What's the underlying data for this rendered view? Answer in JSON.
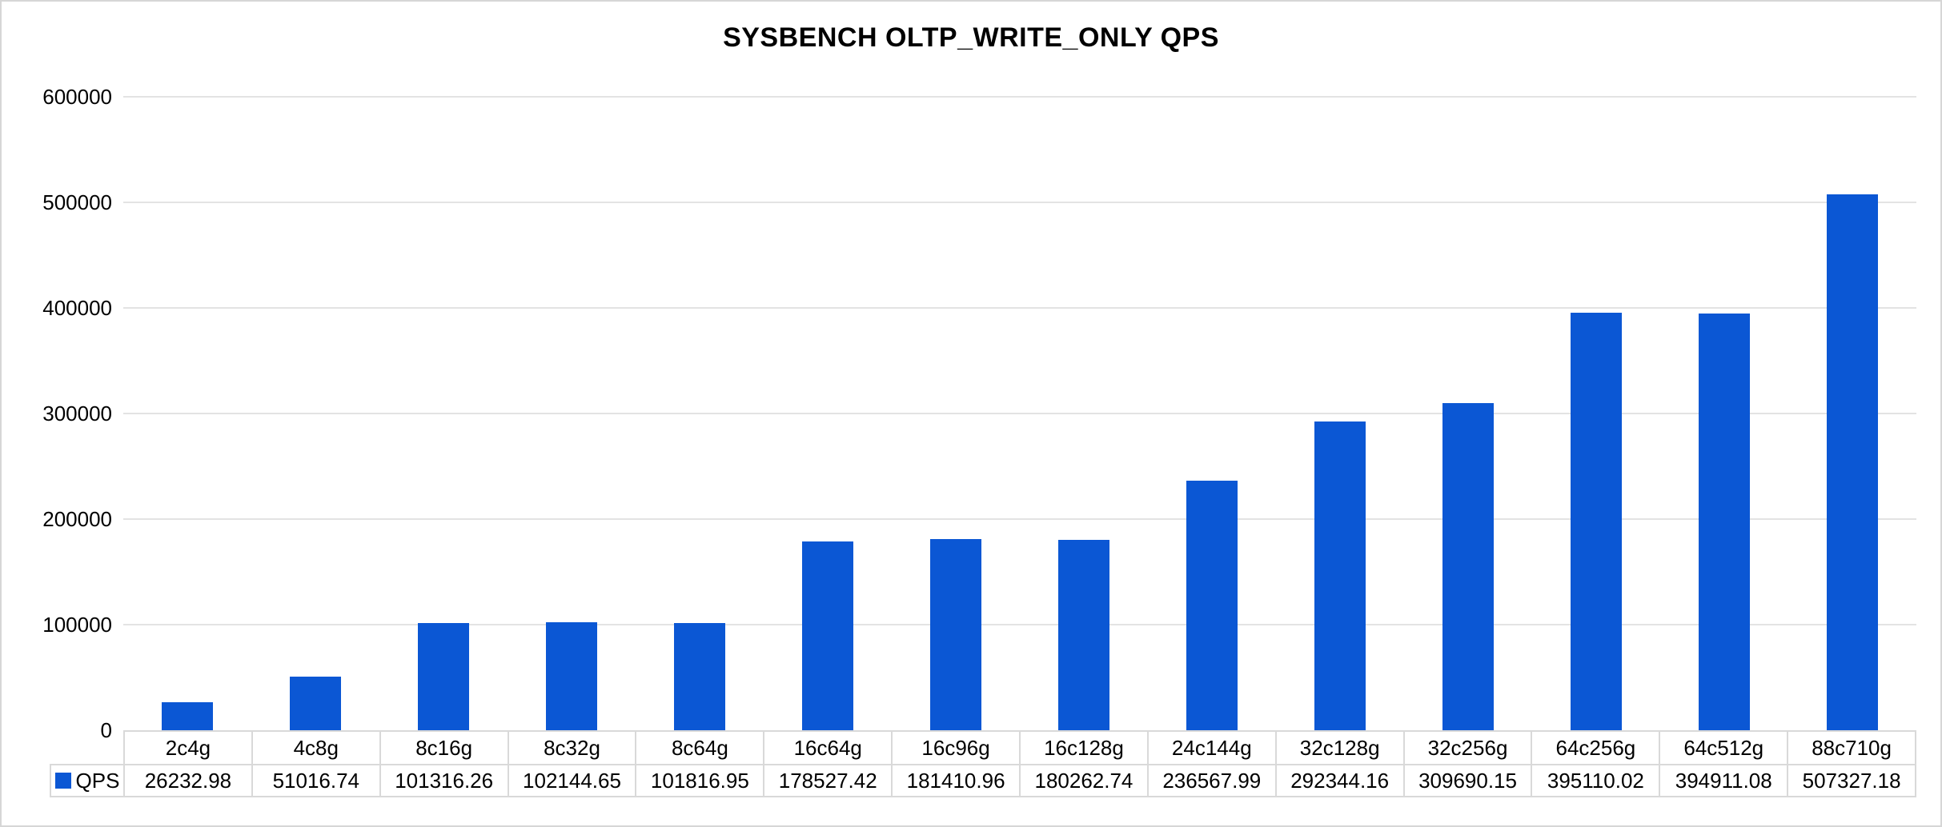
{
  "chart_data": {
    "type": "bar",
    "title": "SYSBENCH OLTP_WRITE_ONLY QPS",
    "categories": [
      "2c4g",
      "4c8g",
      "8c16g",
      "8c32g",
      "8c64g",
      "16c64g",
      "16c96g",
      "16c128g",
      "24c144g",
      "32c128g",
      "32c256g",
      "64c256g",
      "64c512g",
      "88c710g"
    ],
    "series": [
      {
        "name": "QPS",
        "values": [
          26232.98,
          51016.74,
          101316.26,
          102144.65,
          101816.95,
          178527.42,
          181410.96,
          180262.74,
          236567.99,
          292344.16,
          309690.15,
          395110.02,
          394911.08,
          507327.18
        ]
      }
    ],
    "value_labels": [
      "26232.98",
      "51016.74",
      "101316.26",
      "102144.65",
      "101816.95",
      "178527.42",
      "181410.96",
      "180262.74",
      "236567.99",
      "292344.16",
      "309690.15",
      "395110.02",
      "394911.08",
      "507327.18"
    ],
    "xlabel": "",
    "ylabel": "",
    "ylim": [
      0,
      600000
    ],
    "y_ticks": [
      0,
      100000,
      200000,
      300000,
      400000,
      500000,
      600000
    ],
    "y_tick_labels": [
      "0",
      "100000",
      "200000",
      "300000",
      "400000",
      "500000",
      "600000"
    ],
    "grid": "horizontal",
    "legend_position": "table-row-header-left",
    "colors": {
      "bar": "#0B57D4",
      "gridline": "#E3E3E3",
      "table_border": "#D9D9D9",
      "text": "#000000",
      "background": "#FFFFFF"
    }
  }
}
